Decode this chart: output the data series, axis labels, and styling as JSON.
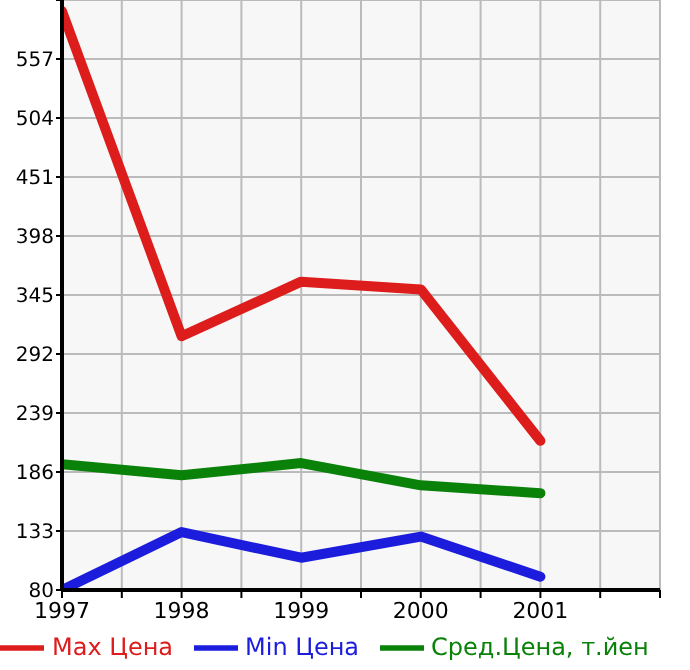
{
  "chart_data": {
    "type": "line",
    "x": [
      1997,
      1998,
      1999,
      2000,
      2001
    ],
    "series": [
      {
        "name": "Max Цена",
        "color": "#dd1c1c",
        "values": [
          600,
          308,
          357,
          350,
          214
        ]
      },
      {
        "name": "Min Цена",
        "color": "#1c1cdd",
        "values": [
          80,
          132,
          109,
          128,
          92
        ]
      },
      {
        "name": "Сред.Цена, т.йен",
        "color": "#0a820a",
        "values": [
          193,
          183,
          194,
          174,
          167
        ]
      }
    ],
    "xlim": [
      1997,
      2002
    ],
    "xticks": [
      1997,
      {
        "value": 1997.5,
        "label": null
      },
      1998,
      {
        "value": 1998.5,
        "label": null
      },
      1999,
      {
        "value": 1999.5,
        "label": null
      },
      2000,
      {
        "value": 2000.5,
        "label": null
      },
      2001,
      {
        "value": 2001.5,
        "label": null
      },
      {
        "value": 2002,
        "label": null
      }
    ],
    "ylim": [
      80,
      610
    ],
    "yticks": [
      80,
      133,
      186,
      239,
      292,
      345,
      398,
      451,
      504,
      557,
      {
        "value": 610,
        "label": null
      }
    ],
    "grid": true,
    "legend": "bottom",
    "marker": "none",
    "line_style": "solid"
  }
}
